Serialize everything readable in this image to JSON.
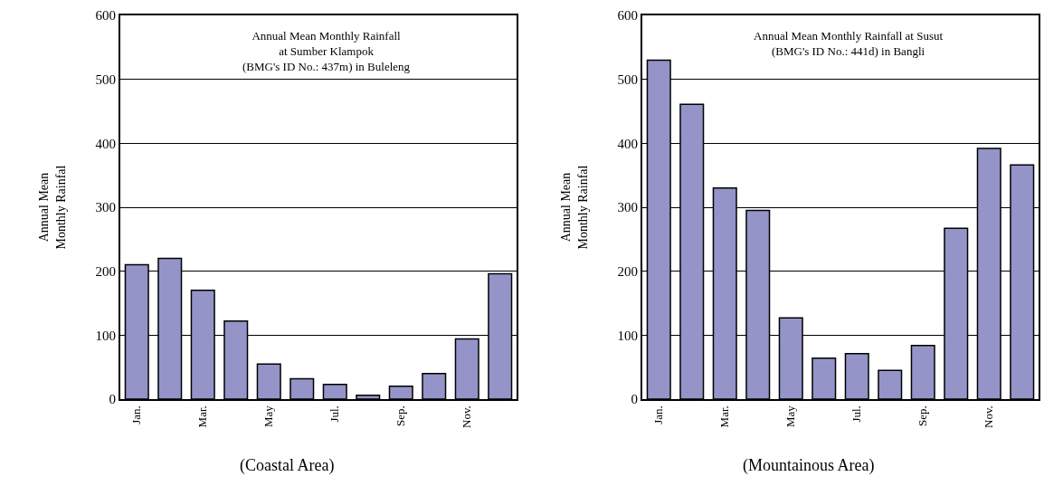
{
  "chart_data": [
    {
      "type": "bar",
      "title": "Annual Mean Monthly Rainfall\nat Sumber Klampok\n(BMG's ID No.: 437m) in Buleleng",
      "ylabel": "Annual Mean\nMonthly Rainfal",
      "categories": [
        "Jan.",
        null,
        "Mar.",
        null,
        "May",
        null,
        "Jul.",
        null,
        "Sep.",
        null,
        "Nov.",
        null
      ],
      "values": [
        210,
        220,
        170,
        122,
        55,
        32,
        23,
        6,
        20,
        40,
        94,
        196
      ],
      "color": "#9494c8",
      "ylim": [
        0,
        600
      ],
      "yticks": [
        0,
        100,
        200,
        300,
        400,
        500,
        600
      ],
      "grid": "y",
      "annotations": [
        "(Coastal Area)"
      ]
    },
    {
      "type": "bar",
      "title": "Annual Mean Monthly Rainfall at Susut\n(BMG's ID No.: 441d) in Bangli",
      "ylabel": "Annual Mean\nMonthly Rainfal",
      "categories": [
        "Jan.",
        null,
        "Mar.",
        null,
        "May",
        null,
        "Jul.",
        null,
        "Sep.",
        null,
        "Nov.",
        null
      ],
      "values": [
        530,
        461,
        330,
        295,
        127,
        64,
        71,
        45,
        84,
        267,
        392,
        366
      ],
      "color": "#9494c8",
      "ylim": [
        0,
        600
      ],
      "yticks": [
        0,
        100,
        200,
        300,
        400,
        500,
        600
      ],
      "grid": "y",
      "annotations": [
        "(Mountainous Area)"
      ]
    }
  ]
}
